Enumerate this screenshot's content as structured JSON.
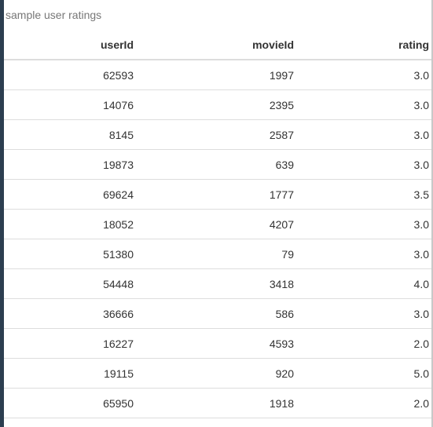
{
  "caption": "sample user ratings",
  "columns": {
    "col1": "userId",
    "col2": "movieId",
    "col3": "rating"
  },
  "rows": [
    {
      "userId": "62593",
      "movieId": "1997",
      "rating": "3.0"
    },
    {
      "userId": "14076",
      "movieId": "2395",
      "rating": "3.0"
    },
    {
      "userId": "8145",
      "movieId": "2587",
      "rating": "3.0"
    },
    {
      "userId": "19873",
      "movieId": "639",
      "rating": "3.0"
    },
    {
      "userId": "69624",
      "movieId": "1777",
      "rating": "3.5"
    },
    {
      "userId": "18052",
      "movieId": "4207",
      "rating": "3.0"
    },
    {
      "userId": "51380",
      "movieId": "79",
      "rating": "3.0"
    },
    {
      "userId": "54448",
      "movieId": "3418",
      "rating": "4.0"
    },
    {
      "userId": "36666",
      "movieId": "586",
      "rating": "3.0"
    },
    {
      "userId": "16227",
      "movieId": "4593",
      "rating": "2.0"
    },
    {
      "userId": "19115",
      "movieId": "920",
      "rating": "5.0"
    },
    {
      "userId": "65950",
      "movieId": "1918",
      "rating": "2.0"
    }
  ],
  "colors": {
    "sidebar_edge": "#2c3e50",
    "row_border": "#dddddd",
    "caption_text": "#777777",
    "cell_text": "#333333"
  }
}
